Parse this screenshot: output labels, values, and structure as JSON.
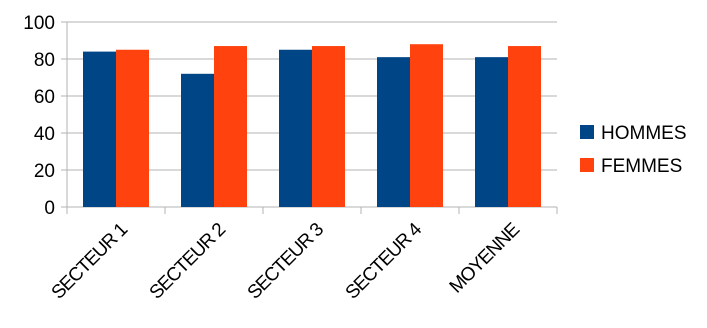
{
  "chart_data": {
    "type": "bar",
    "categories": [
      "SECTEUR 1",
      "SECTEUR 2",
      "SECTEUR 3",
      "SECTEUR 4",
      "MOYENNE"
    ],
    "series": [
      {
        "name": "HOMMES",
        "values": [
          84,
          72,
          85,
          81,
          81
        ],
        "color": "#004586"
      },
      {
        "name": "FEMMES",
        "values": [
          85,
          87,
          87,
          88,
          87
        ],
        "color": "#ff420e"
      }
    ],
    "yticks": [
      "0",
      "20",
      "40",
      "60",
      "80",
      "100"
    ],
    "ylim": [
      0,
      100
    ],
    "grid": true,
    "legend": "right"
  }
}
